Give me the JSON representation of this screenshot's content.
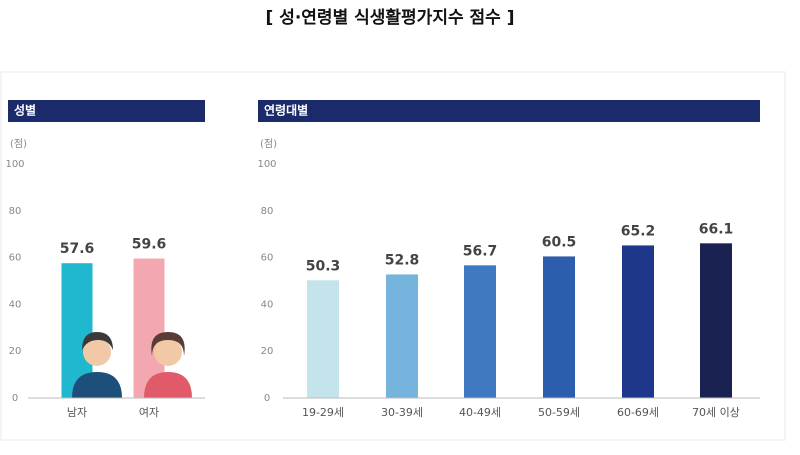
{
  "title": "[ 성·연령별 식생활평가지수 점수 ]",
  "chart_data": [
    {
      "type": "bar",
      "title": "성별",
      "ylabel": "(점)",
      "categories": [
        "남자",
        "여자"
      ],
      "values": [
        57.6,
        59.6
      ],
      "colors": [
        "#1fb8cf",
        "#f3a8b1"
      ],
      "ylim": [
        0,
        100
      ],
      "yticks": [
        0,
        20,
        40,
        60,
        80,
        100
      ],
      "grid": false
    },
    {
      "type": "bar",
      "title": "연령대별",
      "ylabel": "(점)",
      "categories": [
        "19-29세",
        "30-39세",
        "40-49세",
        "50-59세",
        "60-69세",
        "70세 이상"
      ],
      "values": [
        50.3,
        52.8,
        56.7,
        60.5,
        65.2,
        66.1
      ],
      "colors": [
        "#c3e4eb",
        "#75b4dc",
        "#3f79c1",
        "#2d5eae",
        "#1e378a",
        "#1a2252"
      ],
      "ylim": [
        0,
        100
      ],
      "yticks": [
        0,
        20,
        40,
        60,
        80,
        100
      ],
      "grid": false
    }
  ]
}
